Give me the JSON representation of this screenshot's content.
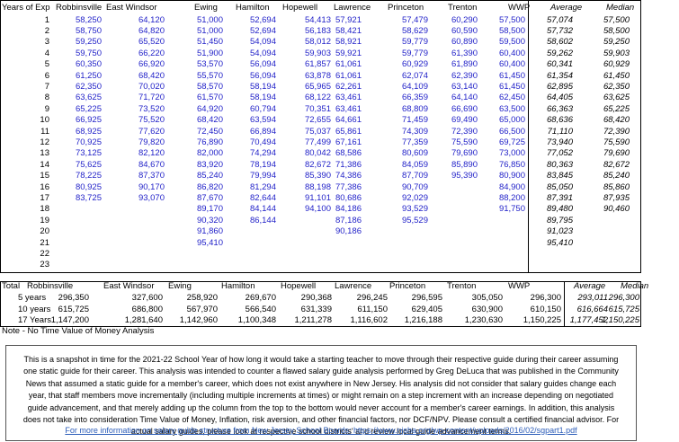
{
  "table": {
    "header": [
      "Years of Exp",
      "Robbinsville",
      "East Windsor",
      "Ewing",
      "Hamilton",
      "Hopewell",
      "Lawrence",
      "Princeton",
      "Trenton",
      "WWP",
      "Average",
      "Median"
    ],
    "rows": [
      [
        "1",
        "58,250",
        "64,120",
        "51,000",
        "52,694",
        "54,413",
        "57,921",
        "57,479",
        "60,290",
        "57,500",
        "57,074",
        "57,500"
      ],
      [
        "2",
        "58,750",
        "64,820",
        "51,000",
        "52,694",
        "56,183",
        "58,421",
        "58,629",
        "60,590",
        "58,500",
        "57,732",
        "58,500"
      ],
      [
        "3",
        "59,250",
        "65,520",
        "51,450",
        "54,094",
        "58,012",
        "58,921",
        "59,779",
        "60,890",
        "59,500",
        "58,602",
        "59,250"
      ],
      [
        "4",
        "59,750",
        "66,220",
        "51,900",
        "54,094",
        "59,903",
        "59,921",
        "59,779",
        "61,390",
        "60,400",
        "59,262",
        "59,903"
      ],
      [
        "5",
        "60,350",
        "66,920",
        "53,570",
        "56,094",
        "61,857",
        "61,061",
        "60,929",
        "61,890",
        "60,400",
        "60,341",
        "60,929"
      ],
      [
        "6",
        "61,250",
        "68,420",
        "55,570",
        "56,094",
        "63,878",
        "61,061",
        "62,074",
        "62,390",
        "61,450",
        "61,354",
        "61,450"
      ],
      [
        "7",
        "62,350",
        "70,020",
        "58,570",
        "58,194",
        "65,965",
        "62,261",
        "64,109",
        "63,140",
        "61,450",
        "62,895",
        "62,350"
      ],
      [
        "8",
        "63,625",
        "71,720",
        "61,570",
        "58,194",
        "68,122",
        "63,461",
        "66,359",
        "64,140",
        "62,450",
        "64,405",
        "63,625"
      ],
      [
        "9",
        "65,225",
        "73,520",
        "64,920",
        "60,794",
        "70,351",
        "63,461",
        "68,809",
        "66,690",
        "63,500",
        "66,363",
        "65,225"
      ],
      [
        "10",
        "66,925",
        "75,520",
        "68,420",
        "63,594",
        "72,655",
        "64,661",
        "71,459",
        "69,490",
        "65,000",
        "68,636",
        "68,420"
      ],
      [
        "11",
        "68,925",
        "77,620",
        "72,450",
        "66,894",
        "75,037",
        "65,861",
        "74,309",
        "72,390",
        "66,500",
        "71,110",
        "72,390"
      ],
      [
        "12",
        "70,925",
        "79,820",
        "76,890",
        "70,494",
        "77,499",
        "67,161",
        "77,359",
        "75,590",
        "69,725",
        "73,940",
        "75,590"
      ],
      [
        "13",
        "73,125",
        "82,120",
        "82,000",
        "74,294",
        "80,042",
        "68,586",
        "80,609",
        "79,690",
        "73,000",
        "77,052",
        "79,690"
      ],
      [
        "14",
        "75,625",
        "84,670",
        "83,920",
        "78,194",
        "82,672",
        "71,386",
        "84,059",
        "85,890",
        "76,850",
        "80,363",
        "82,672"
      ],
      [
        "15",
        "78,225",
        "87,370",
        "85,240",
        "79,994",
        "85,390",
        "74,386",
        "87,709",
        "95,390",
        "80,900",
        "83,845",
        "85,240"
      ],
      [
        "16",
        "80,925",
        "90,170",
        "86,820",
        "81,294",
        "88,198",
        "77,386",
        "90,709",
        null,
        "84,900",
        "85,050",
        "85,860"
      ],
      [
        "17",
        "83,725",
        "93,070",
        "87,670",
        "82,644",
        "91,101",
        "80,686",
        "92,029",
        null,
        "88,200",
        "87,391",
        "87,935"
      ],
      [
        "18",
        null,
        null,
        "89,170",
        "84,144",
        "94,100",
        "84,186",
        "93,529",
        null,
        "91,750",
        "89,480",
        "90,460"
      ],
      [
        "19",
        null,
        null,
        "90,320",
        "86,144",
        null,
        "87,186",
        "95,529",
        null,
        null,
        "89,795",
        null
      ],
      [
        "20",
        null,
        null,
        "91,860",
        null,
        null,
        "90,186",
        null,
        null,
        null,
        "91,023",
        null
      ],
      [
        "21",
        null,
        null,
        "95,410",
        null,
        null,
        null,
        null,
        null,
        null,
        "95,410",
        null
      ],
      [
        "22",
        null,
        null,
        null,
        null,
        null,
        null,
        null,
        null,
        null,
        null,
        null
      ],
      [
        "23",
        null,
        null,
        null,
        null,
        null,
        null,
        null,
        null,
        null,
        null,
        null
      ]
    ]
  },
  "totals": {
    "header": [
      "Total",
      "Robbinsville",
      "East Windsor",
      "Ewing",
      "Hamilton",
      "Hopewell",
      "Lawrence",
      "Princeton",
      "Trenton",
      "WWP",
      "Average",
      "Median"
    ],
    "rows": [
      [
        "5 years",
        "296,350",
        "327,600",
        "258,920",
        "269,670",
        "290,368",
        "296,245",
        "296,595",
        "305,050",
        "296,300",
        "293,011",
        "296,300"
      ],
      [
        "10 years",
        "615,725",
        "686,800",
        "567,970",
        "566,540",
        "631,339",
        "611,150",
        "629,405",
        "630,900",
        "610,150",
        "616,664",
        "615,725"
      ],
      [
        "17 Years",
        "1,147,200",
        "1,281,640",
        "1,142,960",
        "1,100,348",
        "1,211,278",
        "1,116,602",
        "1,216,188",
        "1,230,630",
        "1,150,225",
        "1,177,452",
        "1,150,225"
      ]
    ]
  },
  "note": "Note - No Time Value of Money Analysis",
  "info": {
    "text": "This is a snapshot in time for the 2021-22 School Year of how long it would take a starting teacher to move through their respective guide during their career assuming one static guide for their career. This analysis was intended to counter a flawed salary guide analysis performed by Greg DeLuca that was published in the Community News that assumed a static guide for a member's career, which does not exist anywhere in New Jersey. His analysis did not consider that salary guides change each year, that staff members move incrementally (including multiple increments at times) or might remain on a step increment with an increase depending on negotiated guide advancement, and that merely adding up the column from the top to the bottom would never account for a member's career earnings. In addition, this analysis does not take into consideration Time Value of Money, Inflation, risk aversion, and other financial factors, nor DCF/NPV. Please consult a certified financial advisor. For actual salary guides, please look at respective school districts' and review local guide advancement terms.",
    "link": "For more information on salary guide structure from New Jersey School Boards: https://www.njsba.org/wp-content/uploads/2016/02/sgpart1.pdf"
  }
}
